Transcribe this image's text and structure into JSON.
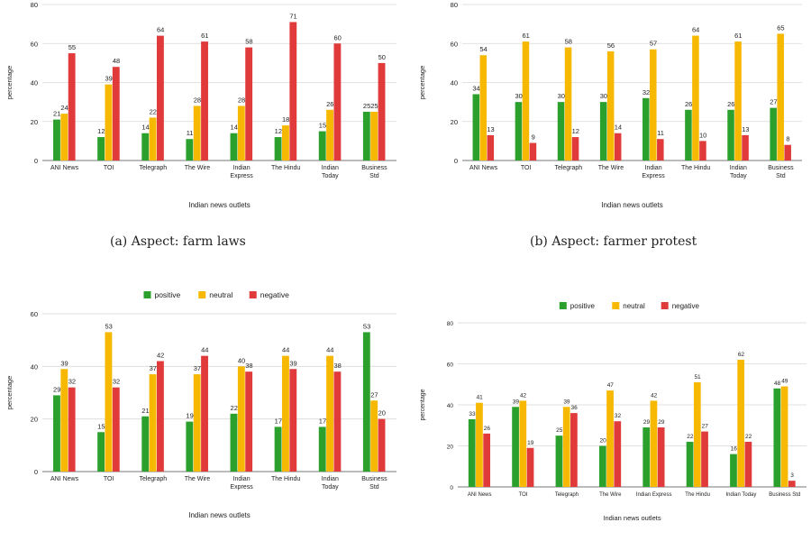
{
  "chart_data": [
    {
      "type": "bar",
      "caption": "(a) Aspect: farm laws",
      "xlabel": "Indian news outlets",
      "ylabel": "percentage",
      "ylim": [
        0,
        80
      ],
      "yticks": [
        0,
        20,
        40,
        60,
        80
      ],
      "legend": null,
      "categories": [
        [
          "ANI News"
        ],
        [
          "TOI"
        ],
        [
          "Telegraph"
        ],
        [
          "The Wire"
        ],
        [
          "Indian",
          "Express"
        ],
        [
          "The Hindu"
        ],
        [
          "Indian",
          "Today"
        ],
        [
          "Business",
          "Std"
        ]
      ],
      "series": [
        {
          "name": "positive",
          "color": "#2ca02c",
          "values": [
            21,
            12,
            14,
            11,
            14,
            12,
            15,
            25
          ]
        },
        {
          "name": "neutral",
          "color": "#f6b800",
          "values": [
            24,
            39,
            22,
            28,
            28,
            18,
            26,
            25
          ]
        },
        {
          "name": "negative",
          "color": "#e03a3a",
          "values": [
            55,
            48,
            64,
            61,
            58,
            71,
            60,
            50
          ]
        }
      ]
    },
    {
      "type": "bar",
      "caption": "(b) Aspect: farmer protest",
      "xlabel": "Indian news outlets",
      "ylabel": "percentage",
      "ylim": [
        0,
        80
      ],
      "yticks": [
        0,
        20,
        40,
        60,
        80
      ],
      "legend": null,
      "categories": [
        [
          "ANI News"
        ],
        [
          "TOI"
        ],
        [
          "Telegraph"
        ],
        [
          "The Wire"
        ],
        [
          "Indian",
          "Express"
        ],
        [
          "The Hindu"
        ],
        [
          "Indian",
          "Today"
        ],
        [
          "Business",
          "Std"
        ]
      ],
      "series": [
        {
          "name": "positive",
          "color": "#2ca02c",
          "values": [
            34,
            30,
            30,
            30,
            32,
            26,
            26,
            27
          ]
        },
        {
          "name": "neutral",
          "color": "#f6b800",
          "values": [
            54,
            61,
            58,
            56,
            57,
            64,
            61,
            65
          ]
        },
        {
          "name": "negative",
          "color": "#e03a3a",
          "values": [
            13,
            9,
            12,
            14,
            11,
            10,
            13,
            8
          ]
        }
      ]
    },
    {
      "type": "bar",
      "caption": "",
      "xlabel": "Indian news outlets",
      "ylabel": "percentage",
      "ylim": [
        0,
        60
      ],
      "yticks": [
        0,
        20,
        40,
        60
      ],
      "legend": "top",
      "categories": [
        [
          "ANI News"
        ],
        [
          "TOI"
        ],
        [
          "Telegraph"
        ],
        [
          "The Wire"
        ],
        [
          "Indian",
          "Express"
        ],
        [
          "The Hindu"
        ],
        [
          "Indian",
          "Today"
        ],
        [
          "Business",
          "Std"
        ]
      ],
      "series": [
        {
          "name": "positive",
          "color": "#2ca02c",
          "values": [
            29,
            15,
            21,
            19,
            22,
            17,
            17,
            53
          ]
        },
        {
          "name": "neutral",
          "color": "#f6b800",
          "values": [
            39,
            53,
            37,
            37,
            40,
            44,
            44,
            27
          ]
        },
        {
          "name": "negative",
          "color": "#e03a3a",
          "values": [
            32,
            32,
            42,
            44,
            38,
            39,
            38,
            20
          ]
        }
      ]
    },
    {
      "type": "bar",
      "caption": "",
      "xlabel": "Indian news outlets",
      "ylabel": "percentage",
      "ylim": [
        0,
        80
      ],
      "yticks": [
        0,
        20,
        40,
        60,
        80
      ],
      "legend": "top",
      "categories": [
        [
          "ANI News"
        ],
        [
          "TOI"
        ],
        [
          "Telegraph"
        ],
        [
          "The Wire"
        ],
        [
          "Indian Express"
        ],
        [
          "The Hindu"
        ],
        [
          "Indian Today"
        ],
        [
          "Business Std"
        ]
      ],
      "series": [
        {
          "name": "positive",
          "color": "#2ca02c",
          "values": [
            33,
            39,
            25,
            20,
            29,
            22,
            16,
            48
          ]
        },
        {
          "name": "neutral",
          "color": "#f6b800",
          "values": [
            41,
            42,
            39,
            47,
            42,
            51,
            62,
            49
          ]
        },
        {
          "name": "negative",
          "color": "#e03a3a",
          "values": [
            26,
            19,
            36,
            32,
            29,
            27,
            22,
            3
          ]
        }
      ]
    }
  ]
}
